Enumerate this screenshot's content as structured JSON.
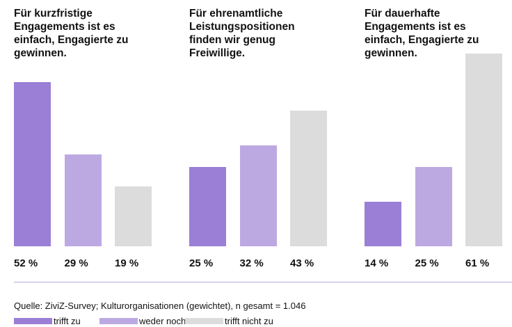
{
  "chart_data": {
    "type": "bar",
    "categories": [
      "Für kurzfristige Engagements ist es einfach, Engagierte zu gewinnen.",
      "Für ehrenamtliche Leistungspositionen finden wir genug Freiwillige.",
      "Für dauerhafte Engagements ist es einfach, Engagierte zu gewinnen."
    ],
    "series": [
      {
        "name": "trifft zu",
        "color": "#9b7fd6",
        "values": [
          52,
          25,
          14
        ],
        "value_labels": [
          "52 %",
          "25 %",
          "14 %"
        ]
      },
      {
        "name": "weder noch",
        "color": "#bca9e2",
        "values": [
          29,
          32,
          25
        ],
        "value_labels": [
          "29 %",
          "32 %",
          "25 %"
        ]
      },
      {
        "name": "trifft nicht zu",
        "color": "#dcdcdc",
        "values": [
          19,
          43,
          61
        ],
        "value_labels": [
          "19 %",
          "43 %",
          "61 %"
        ]
      }
    ],
    "note": "Quelle: ZiviZ-Survey; Kulturorganisationen (gewichtet), n gesamt = 1.046"
  }
}
